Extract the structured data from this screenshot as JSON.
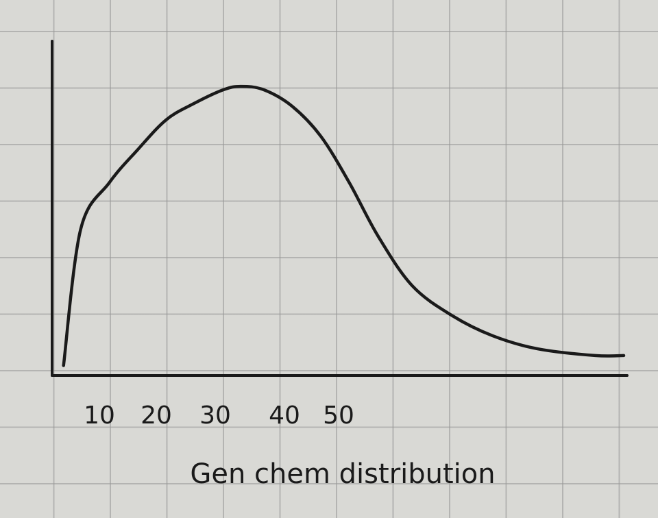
{
  "chart_data": {
    "type": "line",
    "title": "",
    "xlabel": "Gen chem distribution",
    "ylabel": "",
    "x_ticks": [
      "10",
      "20",
      "30",
      "40",
      "50"
    ],
    "xlim": [
      0,
      100
    ],
    "ylim": [
      0,
      1
    ],
    "grid": true,
    "series": [
      {
        "x": [
          2,
          5,
          10,
          15,
          20,
          25,
          30,
          33,
          37,
          42,
          47,
          52,
          57,
          63,
          70,
          77,
          85,
          95,
          100
        ],
        "y": [
          0.03,
          0.44,
          0.58,
          0.68,
          0.77,
          0.82,
          0.86,
          0.87,
          0.86,
          0.81,
          0.72,
          0.58,
          0.42,
          0.27,
          0.18,
          0.12,
          0.08,
          0.06,
          0.06
        ]
      }
    ]
  },
  "colors": {
    "ink": "#1a1a1a",
    "paper": "#d9d9d5",
    "grid": "#969696"
  }
}
